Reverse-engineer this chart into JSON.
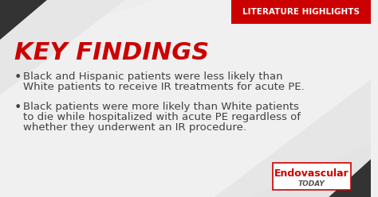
{
  "bg_color": "#f0f0f0",
  "title": "KEY FINDINGS",
  "title_color": "#cc0000",
  "title_fontsize": 22,
  "bullet1_line1": "Black and Hispanic patients were less likely than",
  "bullet1_line2": "White patients to receive IR treatments for acute PE.",
  "bullet2_line1": "Black patients were more likely than White patients",
  "bullet2_line2": "to die while hospitalized with acute PE regardless of",
  "bullet2_line3": "whether they underwent an IR procedure.",
  "bullet_color": "#404040",
  "bullet_fontsize": 9.5,
  "badge_text": "LITERATURE HIGHLIGHTS",
  "badge_bg": "#cc0000",
  "badge_text_color": "#ffffff",
  "badge_fontsize": 7.5,
  "logo_text1": "Endovascular",
  "logo_text2": "TODAY",
  "logo_color": "#cc0000",
  "logo_fontsize": 9,
  "watermark_color": "#d8d8d8",
  "corner_dark": "#333333"
}
